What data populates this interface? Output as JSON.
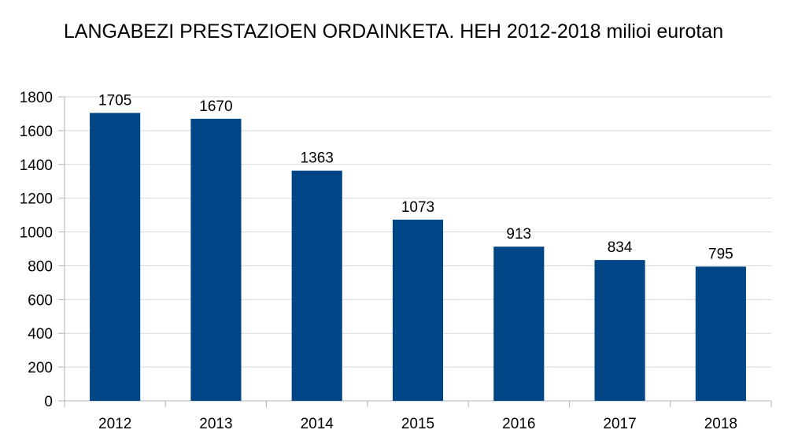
{
  "chart_data": {
    "type": "bar",
    "title": "LANGABEZI PRESTAZIOEN ORDAINKETA. HEH 2012-2018 milioi eurotan",
    "xlabel": "",
    "ylabel": "",
    "categories": [
      "2012",
      "2013",
      "2014",
      "2015",
      "2016",
      "2017",
      "2018"
    ],
    "values": [
      1705,
      1670,
      1363,
      1073,
      913,
      834,
      795
    ],
    "data_labels": [
      "1705",
      "1670",
      "1363",
      "1073",
      "913",
      "834",
      "795"
    ],
    "ylim": [
      0,
      1800
    ],
    "y_ticks": [
      0,
      200,
      400,
      600,
      800,
      1000,
      1200,
      1400,
      1600,
      1800
    ],
    "grid": true,
    "legend": "none",
    "bar_color": "#004586"
  }
}
